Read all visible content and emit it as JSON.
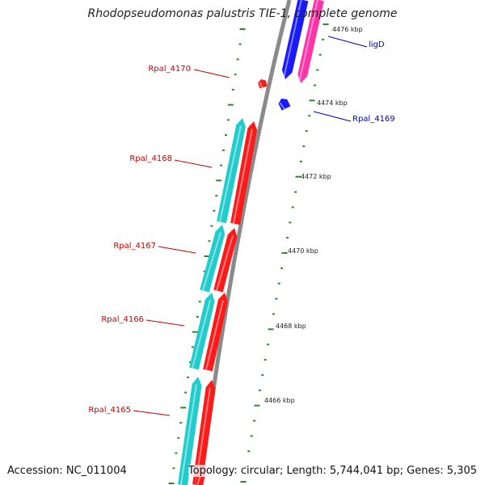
{
  "title": "Rhodopseudomonas palustris TIE-1, complete genome",
  "footer": {
    "accession": "Accession: NC_011004",
    "topology": "Topology: circular; Length: 5,744,041 bp; Genes: 5,305"
  },
  "colors": {
    "backbone": "#8a8a8a",
    "tick": "#2a8a2a",
    "forward_gene": "#ff1a1a",
    "forward_cds": "#22cccc",
    "reverse_gene": "#1a1aff",
    "reverse_cds": "#ff33aa",
    "forward_label": "#cc0000",
    "reverse_label": "#0000bb"
  },
  "scale": {
    "unit": "kbp",
    "labeled_ticks": [
      "4476 kbp",
      "4474 kbp",
      "4472 kbp",
      "4470 kbp",
      "4468 kbp",
      "4466 kbp"
    ]
  },
  "genes": [
    {
      "name": "ligD",
      "strand": "reverse"
    },
    {
      "name": "Rpal_4170",
      "strand": "forward"
    },
    {
      "name": "Rpal_4169",
      "strand": "reverse"
    },
    {
      "name": "Rpal_4168",
      "strand": "forward"
    },
    {
      "name": "Rpal_4167",
      "strand": "forward"
    },
    {
      "name": "Rpal_4166",
      "strand": "forward"
    },
    {
      "name": "Rpal_4165",
      "strand": "forward"
    }
  ]
}
